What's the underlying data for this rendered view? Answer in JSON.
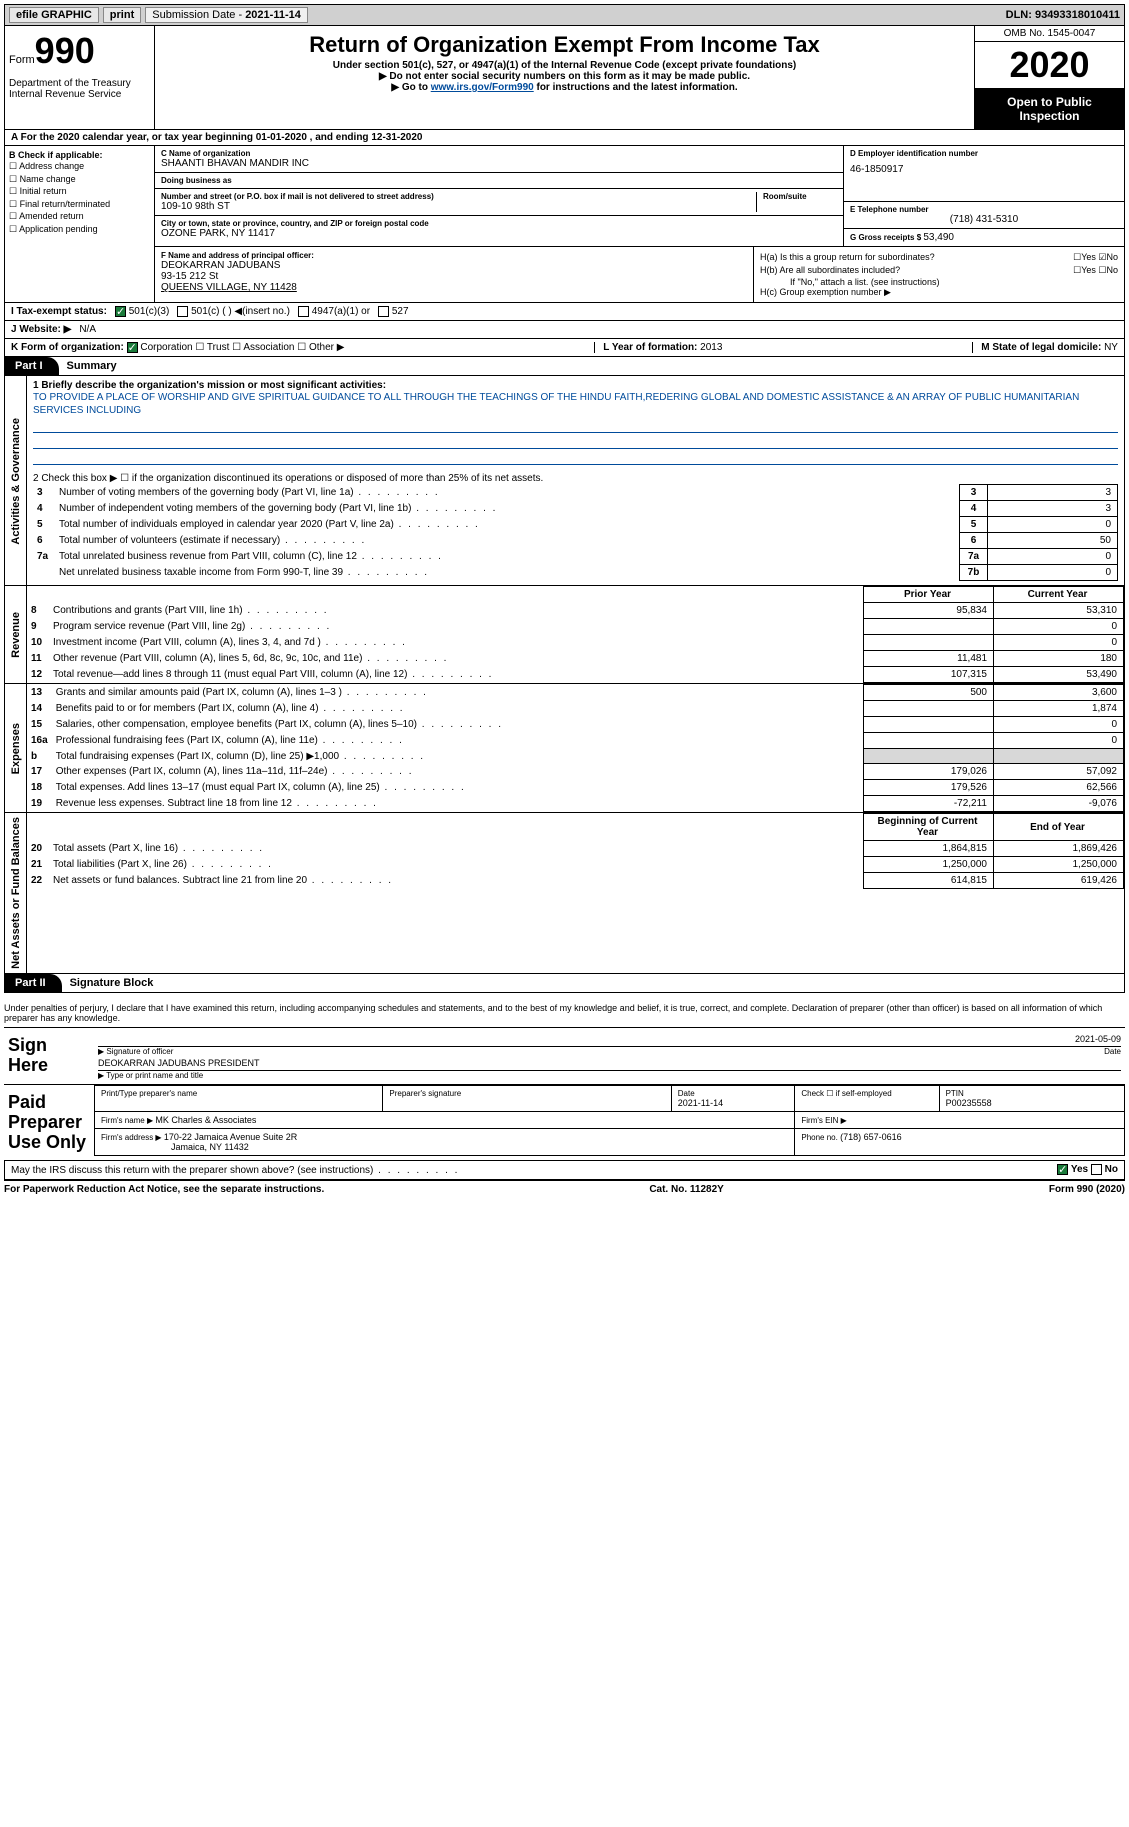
{
  "topbar": {
    "efile": "efile GRAPHIC",
    "print": "print",
    "submission_label": "Submission Date - ",
    "submission_date": "2021-11-14",
    "dln_label": "DLN: ",
    "dln": "93493318010411"
  },
  "header": {
    "form_label": "Form",
    "form_num": "990",
    "dept": "Department of the Treasury\nInternal Revenue Service",
    "title": "Return of Organization Exempt From Income Tax",
    "subtitle1": "Under section 501(c), 527, or 4947(a)(1) of the Internal Revenue Code (except private foundations)",
    "subtitle2": "▶ Do not enter social security numbers on this form as it may be made public.",
    "subtitle3_pre": "▶ Go to ",
    "subtitle3_link": "www.irs.gov/Form990",
    "subtitle3_post": " for instructions and the latest information.",
    "omb": "OMB No. 1545-0047",
    "year": "2020",
    "open": "Open to Public Inspection"
  },
  "row_a": "A For the 2020 calendar year, or tax year beginning 01-01-2020   , and ending 12-31-2020",
  "col_b": {
    "hdr": "B Check if applicable:",
    "items": [
      "Address change",
      "Name change",
      "Initial return",
      "Final return/terminated",
      "Amended return",
      "Application pending"
    ]
  },
  "col_c": {
    "name_lbl": "C Name of organization",
    "name": "SHAANTI BHAVAN MANDIR INC",
    "dba_lbl": "Doing business as",
    "dba": "",
    "street_lbl": "Number and street (or P.O. box if mail is not delivered to street address)",
    "room_lbl": "Room/suite",
    "street": "109-10 98th ST",
    "city_lbl": "City or town, state or province, country, and ZIP or foreign postal code",
    "city": "OZONE PARK, NY  11417"
  },
  "col_d": {
    "ein_lbl": "D Employer identification number",
    "ein": "46-1850917",
    "phone_lbl": "E Telephone number",
    "phone": "(718) 431-5310",
    "gross_lbl": "G Gross receipts $ ",
    "gross": "53,490"
  },
  "col_f": {
    "lbl": "F Name and address of principal officer:",
    "name": "DEOKARRAN JADUBANS",
    "street": "93-15 212 St",
    "city": "QUEENS VILLAGE, NY  11428"
  },
  "col_h": {
    "a_lbl": "H(a)  Is this a group return for subordinates?",
    "a_val": "☐Yes ☑No",
    "b_lbl": "H(b)  Are all subordinates included?",
    "b_val": "☐Yes ☐No",
    "b_note": "If \"No,\" attach a list. (see instructions)",
    "c_lbl": "H(c)  Group exemption number ▶"
  },
  "line_i": {
    "lbl": "I   Tax-exempt status:",
    "opt1": "501(c)(3)",
    "opt2": "501(c) (  ) ◀(insert no.)",
    "opt3": "4947(a)(1) or",
    "opt4": "527"
  },
  "line_j": {
    "lbl": "J   Website: ▶",
    "val": "N/A"
  },
  "line_k": {
    "lbl": "K Form of organization:",
    "opts": "Corporation   ☐ Trust   ☐ Association   ☐ Other ▶",
    "l_lbl": "L Year of formation: ",
    "l_val": "2013",
    "m_lbl": "M State of legal domicile: ",
    "m_val": "NY"
  },
  "part1": {
    "tab": "Part I",
    "title": "Summary"
  },
  "gov": {
    "side": "Activities & Governance",
    "q1_lbl": "1  Briefly describe the organization's mission or most significant activities:",
    "q1_text": "TO PROVIDE A PLACE OF WORSHIP AND GIVE SPIRITUAL GUIDANCE TO ALL THROUGH THE TEACHINGS OF THE HINDU FAITH,REDERING GLOBAL AND DOMESTIC ASSISTANCE & AN ARRAY OF PUBLIC HUMANITARIAN SERVICES INCLUDING",
    "q2": "2   Check this box ▶ ☐  if the organization discontinued its operations or disposed of more than 25% of its net assets.",
    "rows": [
      {
        "n": "3",
        "t": "Number of voting members of the governing body (Part VI, line 1a)",
        "b": "3",
        "v": "3"
      },
      {
        "n": "4",
        "t": "Number of independent voting members of the governing body (Part VI, line 1b)",
        "b": "4",
        "v": "3"
      },
      {
        "n": "5",
        "t": "Total number of individuals employed in calendar year 2020 (Part V, line 2a)",
        "b": "5",
        "v": "0"
      },
      {
        "n": "6",
        "t": "Total number of volunteers (estimate if necessary)",
        "b": "6",
        "v": "50"
      },
      {
        "n": "7a",
        "t": "Total unrelated business revenue from Part VIII, column (C), line 12",
        "b": "7a",
        "v": "0"
      },
      {
        "n": "",
        "t": "Net unrelated business taxable income from Form 990-T, line 39",
        "b": "7b",
        "v": "0"
      }
    ]
  },
  "rev": {
    "side": "Revenue",
    "hdr_prior": "Prior Year",
    "hdr_curr": "Current Year",
    "rows": [
      {
        "n": "8",
        "t": "Contributions and grants (Part VIII, line 1h)",
        "p": "95,834",
        "c": "53,310"
      },
      {
        "n": "9",
        "t": "Program service revenue (Part VIII, line 2g)",
        "p": "",
        "c": "0"
      },
      {
        "n": "10",
        "t": "Investment income (Part VIII, column (A), lines 3, 4, and 7d )",
        "p": "",
        "c": "0"
      },
      {
        "n": "11",
        "t": "Other revenue (Part VIII, column (A), lines 5, 6d, 8c, 9c, 10c, and 11e)",
        "p": "11,481",
        "c": "180"
      },
      {
        "n": "12",
        "t": "Total revenue—add lines 8 through 11 (must equal Part VIII, column (A), line 12)",
        "p": "107,315",
        "c": "53,490"
      }
    ]
  },
  "exp": {
    "side": "Expenses",
    "rows": [
      {
        "n": "13",
        "t": "Grants and similar amounts paid (Part IX, column (A), lines 1–3 )",
        "p": "500",
        "c": "3,600"
      },
      {
        "n": "14",
        "t": "Benefits paid to or for members (Part IX, column (A), line 4)",
        "p": "",
        "c": "1,874"
      },
      {
        "n": "15",
        "t": "Salaries, other compensation, employee benefits (Part IX, column (A), lines 5–10)",
        "p": "",
        "c": "0"
      },
      {
        "n": "16a",
        "t": "Professional fundraising fees (Part IX, column (A), line 11e)",
        "p": "",
        "c": "0"
      },
      {
        "n": "b",
        "t": "Total fundraising expenses (Part IX, column (D), line 25) ▶1,000",
        "p": "shade",
        "c": "shade"
      },
      {
        "n": "17",
        "t": "Other expenses (Part IX, column (A), lines 11a–11d, 11f–24e)",
        "p": "179,026",
        "c": "57,092"
      },
      {
        "n": "18",
        "t": "Total expenses. Add lines 13–17 (must equal Part IX, column (A), line 25)",
        "p": "179,526",
        "c": "62,566"
      },
      {
        "n": "19",
        "t": "Revenue less expenses. Subtract line 18 from line 12",
        "p": "-72,211",
        "c": "-9,076"
      }
    ]
  },
  "net": {
    "side": "Net Assets or Fund Balances",
    "hdr_beg": "Beginning of Current Year",
    "hdr_end": "End of Year",
    "rows": [
      {
        "n": "20",
        "t": "Total assets (Part X, line 16)",
        "p": "1,864,815",
        "c": "1,869,426"
      },
      {
        "n": "21",
        "t": "Total liabilities (Part X, line 26)",
        "p": "1,250,000",
        "c": "1,250,000"
      },
      {
        "n": "22",
        "t": "Net assets or fund balances. Subtract line 21 from line 20",
        "p": "614,815",
        "c": "619,426"
      }
    ]
  },
  "part2": {
    "tab": "Part II",
    "title": "Signature Block"
  },
  "sig": {
    "declare": "Under penalties of perjury, I declare that I have examined this return, including accompanying schedules and statements, and to the best of my knowledge and belief, it is true, correct, and complete. Declaration of preparer (other than officer) is based on all information of which preparer has any knowledge.",
    "sign_here": "Sign Here",
    "sig_officer_lbl": "Signature of officer",
    "date_val": "2021-05-09",
    "date_lbl": "Date",
    "officer_name": "DEOKARRAN JADUBANS  PRESIDENT",
    "officer_name_lbl": "Type or print name and title",
    "paid_prep": "Paid Preparer Use Only",
    "p_name_lbl": "Print/Type preparer's name",
    "p_sig_lbl": "Preparer's signature",
    "p_date_lbl": "Date",
    "p_date": "2021-11-14",
    "p_self_lbl": "Check ☐ if self-employed",
    "p_ptin_lbl": "PTIN",
    "p_ptin": "P00235558",
    "firm_name_lbl": "Firm's name    ▶ ",
    "firm_name": "MK Charles & Associates",
    "firm_ein_lbl": "Firm's EIN ▶",
    "firm_addr_lbl": "Firm's address ▶ ",
    "firm_addr1": "170-22 Jamaica Avenue Suite 2R",
    "firm_addr2": "Jamaica, NY  11432",
    "firm_phone_lbl": "Phone no. ",
    "firm_phone": "(718) 657-0616",
    "may_irs": "May the IRS discuss this return with the preparer shown above? (see instructions)",
    "may_yes": "Yes",
    "may_no": "No"
  },
  "footer": {
    "l": "For Paperwork Reduction Act Notice, see the separate instructions.",
    "m": "Cat. No. 11282Y",
    "r": "Form 990 (2020)"
  }
}
